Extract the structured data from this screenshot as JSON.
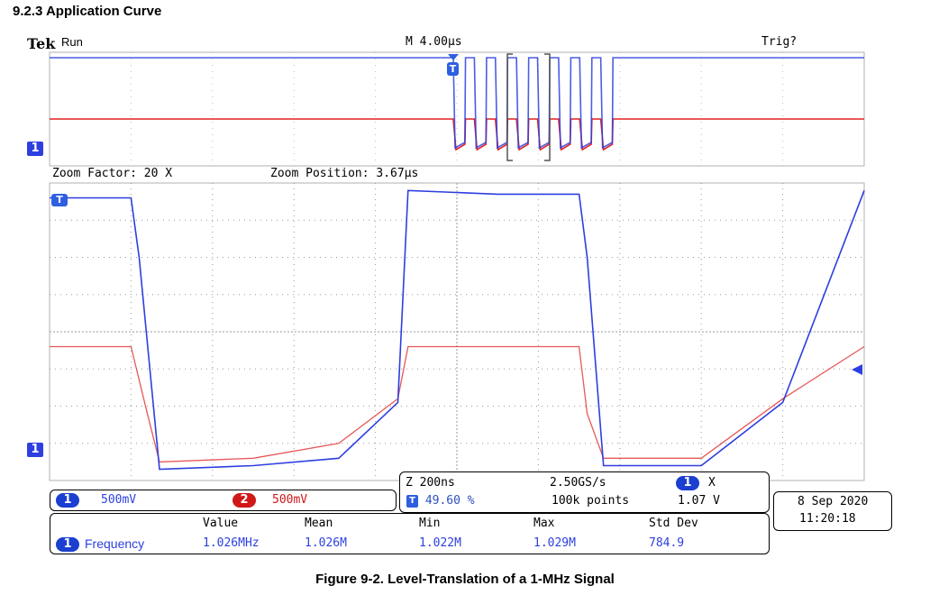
{
  "section_title": "9.2.3 Application Curve",
  "figure_caption": "Figure 9-2. Level-Translation of a 1-MHz Signal",
  "scope": {
    "logo": "Tek",
    "run_state": "Run",
    "timebase": "M 4.00µs",
    "trigger_status": "Trig?",
    "zoom_factor": "Zoom Factor: 20 X",
    "zoom_position": "Zoom Position: 3.67µs",
    "trigger_marker": "T",
    "ch1_marker": "1"
  },
  "channels": {
    "ch1_label": "1",
    "ch1_scale": "500mV",
    "ch2_label": "2",
    "ch2_scale": "500mV",
    "ch1_color": "#2d3fe0",
    "ch2_color": "#e02020"
  },
  "acquisition": {
    "zoom_time": "Z 200ns",
    "trigger_pos": "49.60 %",
    "sample_rate": "2.50GS/s",
    "record_length": "100k points",
    "trig_source": "1",
    "trig_slope": "X",
    "trig_level": "1.07 V"
  },
  "measurements": {
    "headers": [
      "Value",
      "Mean",
      "Min",
      "Max",
      "Std Dev"
    ],
    "source": "1",
    "name": "Frequency",
    "values": [
      "1.026MHz",
      "1.026M",
      "1.022M",
      "1.029M",
      "784.9"
    ]
  },
  "datetime": {
    "date": "8 Sep  2020",
    "time": "11:20:18"
  },
  "chart_data": {
    "type": "line",
    "x_unit": "ns",
    "y_unit": "div",
    "xlim": [
      0,
      2000
    ],
    "ylim": [
      -4,
      4
    ],
    "grid": true,
    "series": [
      {
        "channel": "1",
        "x": [
          0,
          200,
          220,
          270,
          500,
          710,
          855,
          880,
          1100,
          1300,
          1320,
          1360,
          1600,
          1800,
          2000
        ],
        "y": [
          3.6,
          3.6,
          2.0,
          -3.7,
          -3.6,
          -3.4,
          -1.9,
          3.8,
          3.7,
          3.7,
          2.0,
          -3.6,
          -3.6,
          -1.9,
          3.8
        ]
      },
      {
        "channel": "2",
        "x": [
          0,
          200,
          240,
          270,
          500,
          710,
          855,
          880,
          1100,
          1300,
          1320,
          1360,
          1600,
          1800,
          2000
        ],
        "y": [
          -0.4,
          -0.4,
          -2.2,
          -3.5,
          -3.4,
          -3.0,
          -1.8,
          -0.4,
          -0.4,
          -0.4,
          -2.2,
          -3.4,
          -3.4,
          -1.8,
          -0.4
        ]
      }
    ]
  }
}
